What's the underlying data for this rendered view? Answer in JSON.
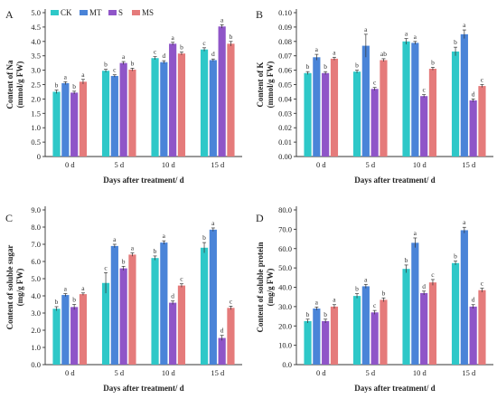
{
  "chart_data": [
    {
      "panel": "A",
      "type": "bar",
      "categories": [
        "0 d",
        "5 d",
        "10 d",
        "15 d"
      ],
      "xlabel": "Days after treatment/ d",
      "ylabel": [
        "Content of Na",
        "(mmol/g FW)"
      ],
      "ylim": [
        0,
        5
      ],
      "yticks": [
        "0",
        "0.5",
        "1.0",
        "1.5",
        "2.0",
        "2.5",
        "3.0",
        "3.5",
        "4.0",
        "4.5",
        "5.0"
      ],
      "legend": "top-left",
      "series": [
        {
          "name": "CK",
          "values": [
            2.25,
            2.98,
            3.42,
            3.72
          ],
          "errors": [
            0.06,
            0.05,
            0.05,
            0.06
          ],
          "letters": [
            "b",
            "b",
            "c",
            "c"
          ]
        },
        {
          "name": "MT",
          "values": [
            2.55,
            2.8,
            3.28,
            3.35
          ],
          "errors": [
            0.05,
            0.04,
            0.05,
            0.04
          ],
          "letters": [
            "a",
            "c",
            "d",
            "d"
          ]
        },
        {
          "name": "S",
          "values": [
            2.22,
            3.25,
            3.92,
            4.52
          ],
          "errors": [
            0.05,
            0.05,
            0.05,
            0.06
          ],
          "letters": [
            "b",
            "a",
            "a",
            "a"
          ]
        },
        {
          "name": "MS",
          "values": [
            2.6,
            3.02,
            3.58,
            3.92
          ],
          "errors": [
            0.08,
            0.05,
            0.05,
            0.08
          ],
          "letters": [
            "a",
            "b",
            "b",
            "b"
          ]
        }
      ]
    },
    {
      "panel": "B",
      "type": "bar",
      "categories": [
        "0 d",
        "5 d",
        "10 d",
        "15 d"
      ],
      "xlabel": "Days after treatment/ d",
      "ylabel": [
        "Content of K",
        "(mmol/g FW)"
      ],
      "ylim": [
        0,
        0.1
      ],
      "yticks": [
        "0.00",
        "0.01",
        "0.02",
        "0.03",
        "0.04",
        "0.05",
        "0.06",
        "0.07",
        "0.08",
        "0.09",
        "0.10"
      ],
      "series": [
        {
          "name": "CK",
          "values": [
            0.058,
            0.059,
            0.08,
            0.073
          ],
          "errors": [
            0.001,
            0.001,
            0.002,
            0.003
          ],
          "letters": [
            "b",
            "b",
            "a",
            "b"
          ]
        },
        {
          "name": "MT",
          "values": [
            0.069,
            0.077,
            0.079,
            0.085
          ],
          "errors": [
            0.002,
            0.008,
            0.001,
            0.003
          ],
          "letters": [
            "a",
            "a",
            "a",
            "a"
          ]
        },
        {
          "name": "S",
          "values": [
            0.058,
            0.047,
            0.042,
            0.039
          ],
          "errors": [
            0.001,
            0.001,
            0.001,
            0.001
          ],
          "letters": [
            "b",
            "c",
            "c",
            "d"
          ]
        },
        {
          "name": "MS",
          "values": [
            0.068,
            0.067,
            0.061,
            0.049
          ],
          "errors": [
            0.001,
            0.001,
            0.001,
            0.001
          ],
          "letters": [
            "a",
            "ab",
            "b",
            "c"
          ]
        }
      ]
    },
    {
      "panel": "C",
      "type": "bar",
      "categories": [
        "0 d",
        "5 d",
        "10 d",
        "15 d"
      ],
      "xlabel": "Days after treatment/ d",
      "ylabel": [
        "Content of soluble sugar",
        "(mg/g FW)"
      ],
      "ylim": [
        0,
        9
      ],
      "yticks": [
        "0.0",
        "1.0",
        "2.0",
        "3.0",
        "4.0",
        "5.0",
        "6.0",
        "7.0",
        "8.0",
        "9.0"
      ],
      "series": [
        {
          "name": "CK",
          "values": [
            3.25,
            4.75,
            6.2,
            6.8
          ],
          "errors": [
            0.12,
            0.6,
            0.12,
            0.3
          ],
          "letters": [
            "b",
            "c",
            "b",
            "b"
          ]
        },
        {
          "name": "MT",
          "values": [
            4.05,
            6.9,
            7.1,
            7.85
          ],
          "errors": [
            0.08,
            0.1,
            0.1,
            0.1
          ],
          "letters": [
            "a",
            "a",
            "a",
            "a"
          ]
        },
        {
          "name": "S",
          "values": [
            3.35,
            5.6,
            3.6,
            1.55
          ],
          "errors": [
            0.15,
            0.12,
            0.1,
            0.15
          ],
          "letters": [
            "b",
            "b",
            "d",
            "d"
          ]
        },
        {
          "name": "MS",
          "values": [
            4.1,
            6.4,
            4.6,
            3.3
          ],
          "errors": [
            0.07,
            0.1,
            0.1,
            0.1
          ],
          "letters": [
            "a",
            "a",
            "c",
            "c"
          ]
        }
      ]
    },
    {
      "panel": "D",
      "type": "bar",
      "categories": [
        "0 d",
        "5 d",
        "10 d",
        "15 d"
      ],
      "xlabel": "Days after treatment/ d",
      "ylabel": [
        "Content of soluble protein",
        "(mg/g FW)"
      ],
      "ylim": [
        0,
        80
      ],
      "yticks": [
        "0.0",
        "10.0",
        "20.0",
        "30.0",
        "40.0",
        "50.0",
        "60.0",
        "70.0",
        "80.0"
      ],
      "series": [
        {
          "name": "CK",
          "values": [
            22.5,
            35.5,
            49.5,
            52.5
          ],
          "errors": [
            1.0,
            1.2,
            2.0,
            1.0
          ],
          "letters": [
            "b",
            "b",
            "b",
            "b"
          ]
        },
        {
          "name": "MT",
          "values": [
            29.0,
            40.5,
            63.0,
            69.5
          ],
          "errors": [
            0.8,
            1.0,
            2.5,
            1.5
          ],
          "letters": [
            "a",
            "a",
            "a",
            "a"
          ]
        },
        {
          "name": "S",
          "values": [
            22.5,
            27.0,
            37.0,
            30.0
          ],
          "errors": [
            1.0,
            1.0,
            1.0,
            1.0
          ],
          "letters": [
            "b",
            "c",
            "d",
            "d"
          ]
        },
        {
          "name": "MS",
          "values": [
            30.0,
            33.5,
            42.5,
            38.5
          ],
          "errors": [
            1.0,
            1.0,
            1.5,
            1.0
          ],
          "letters": [
            "a",
            "b",
            "c",
            "c"
          ]
        }
      ]
    }
  ],
  "colors": {
    "CK": "#2ec8c8",
    "MT": "#4a84d8",
    "S": "#8f55c8",
    "MS": "#e57b7b",
    "axis": "#333333",
    "text": "#222222"
  }
}
